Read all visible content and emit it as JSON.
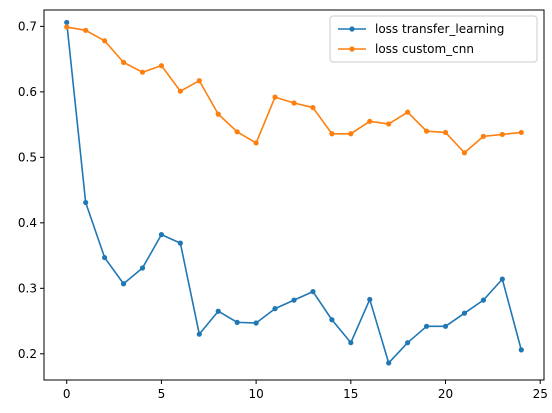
{
  "chart_data": {
    "type": "line",
    "title": "",
    "xlabel": "",
    "ylabel": "",
    "xlim": [
      -1.2,
      25.2
    ],
    "ylim": [
      0.16,
      0.725
    ],
    "x_ticks": [
      0,
      5,
      10,
      15,
      20,
      25
    ],
    "y_ticks": [
      0.2,
      0.3,
      0.4,
      0.5,
      0.6,
      0.7
    ],
    "y_tick_labels": [
      "0.2",
      "0.3",
      "0.4",
      "0.5",
      "0.6",
      "0.7"
    ],
    "grid": false,
    "legend_position": "top-right",
    "x": [
      0,
      1,
      2,
      3,
      4,
      5,
      6,
      7,
      8,
      9,
      10,
      11,
      12,
      13,
      14,
      15,
      16,
      17,
      18,
      19,
      20,
      21,
      22,
      23,
      24
    ],
    "series": [
      {
        "name": "loss transfer_learning",
        "color": "#1f77b4",
        "values": [
          0.706,
          0.431,
          0.347,
          0.307,
          0.331,
          0.382,
          0.369,
          0.23,
          0.265,
          0.248,
          0.247,
          0.269,
          0.282,
          0.295,
          0.252,
          0.217,
          0.283,
          0.186,
          0.217,
          0.242,
          0.242,
          0.262,
          0.282,
          0.314,
          0.206
        ]
      },
      {
        "name": "loss custom_cnn",
        "color": "#ff7f0e",
        "values": [
          0.699,
          0.694,
          0.678,
          0.645,
          0.63,
          0.64,
          0.601,
          0.617,
          0.566,
          0.539,
          0.522,
          0.592,
          0.583,
          0.576,
          0.536,
          0.536,
          0.555,
          0.551,
          0.569,
          0.54,
          0.538,
          0.507,
          0.532,
          0.535,
          0.538
        ]
      }
    ]
  }
}
